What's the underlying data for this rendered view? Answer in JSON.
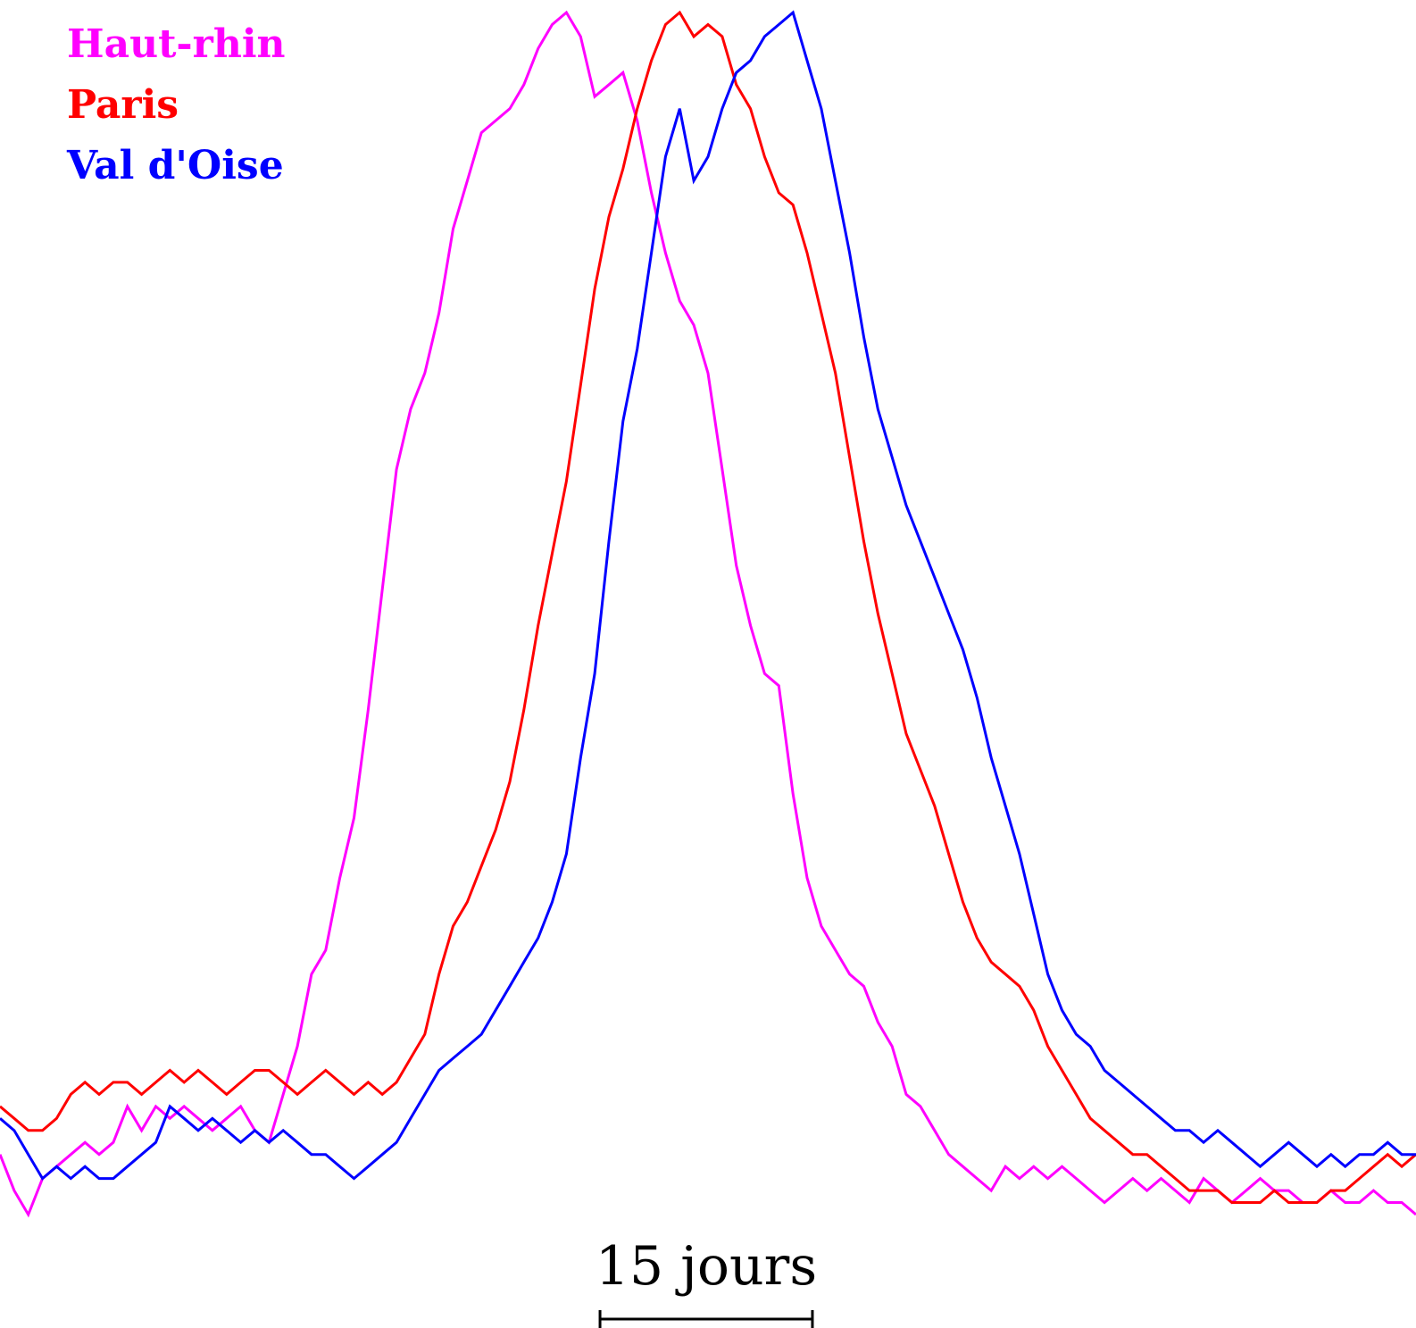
{
  "chart_data": {
    "type": "line",
    "title": "",
    "xlabel": "",
    "ylabel": "",
    "grid": false,
    "axes_visible": false,
    "legend_placement": "top-left",
    "x_unit": "days",
    "x": [
      0,
      1,
      2,
      3,
      4,
      5,
      6,
      7,
      8,
      9,
      10,
      11,
      12,
      13,
      14,
      15,
      16,
      17,
      18,
      19,
      20,
      21,
      22,
      23,
      24,
      25,
      26,
      27,
      28,
      29,
      30,
      31,
      32,
      33,
      34,
      35,
      36,
      37,
      38,
      39,
      40,
      41,
      42,
      43,
      44,
      45,
      46,
      47,
      48,
      49,
      50,
      51,
      52,
      53,
      54,
      55,
      56,
      57,
      58,
      59,
      60,
      61,
      62,
      63,
      64,
      65,
      66,
      67,
      68,
      69,
      70,
      71,
      72,
      73,
      74,
      75,
      76,
      77,
      78,
      79,
      80,
      81,
      82,
      83,
      84,
      85,
      86,
      87,
      88,
      89,
      90,
      91,
      92,
      93,
      94,
      95,
      96,
      97,
      98,
      99,
      100
    ],
    "ylim": [
      0,
      1
    ],
    "scale_bar": {
      "label": "15 jours",
      "days": 15
    },
    "series": [
      {
        "name": "Haut-rhin",
        "color": "#ff00ff",
        "values": [
          0.05,
          0.02,
          0.0,
          0.03,
          0.04,
          0.05,
          0.06,
          0.05,
          0.06,
          0.09,
          0.07,
          0.09,
          0.08,
          0.09,
          0.08,
          0.07,
          0.08,
          0.09,
          0.07,
          0.06,
          0.1,
          0.14,
          0.2,
          0.22,
          0.28,
          0.33,
          0.42,
          0.52,
          0.62,
          0.67,
          0.7,
          0.75,
          0.82,
          0.86,
          0.9,
          0.91,
          0.92,
          0.94,
          0.97,
          0.99,
          1.0,
          0.98,
          0.93,
          0.94,
          0.95,
          0.91,
          0.85,
          0.8,
          0.76,
          0.74,
          0.7,
          0.62,
          0.54,
          0.49,
          0.45,
          0.44,
          0.35,
          0.28,
          0.24,
          0.22,
          0.2,
          0.19,
          0.16,
          0.14,
          0.1,
          0.09,
          0.07,
          0.05,
          0.04,
          0.03,
          0.02,
          0.04,
          0.03,
          0.04,
          0.03,
          0.04,
          0.03,
          0.02,
          0.01,
          0.02,
          0.03,
          0.02,
          0.03,
          0.02,
          0.01,
          0.03,
          0.02,
          0.01,
          0.02,
          0.03,
          0.02,
          0.02,
          0.01,
          0.01,
          0.02,
          0.01,
          0.01,
          0.02,
          0.01,
          0.01,
          0.0
        ]
      },
      {
        "name": "Paris",
        "color": "#ff0000",
        "values": [
          0.09,
          0.08,
          0.07,
          0.07,
          0.08,
          0.1,
          0.11,
          0.1,
          0.11,
          0.11,
          0.1,
          0.11,
          0.12,
          0.11,
          0.12,
          0.11,
          0.1,
          0.11,
          0.12,
          0.12,
          0.11,
          0.1,
          0.11,
          0.12,
          0.11,
          0.1,
          0.11,
          0.1,
          0.11,
          0.13,
          0.15,
          0.2,
          0.24,
          0.26,
          0.29,
          0.32,
          0.36,
          0.42,
          0.49,
          0.55,
          0.61,
          0.69,
          0.77,
          0.83,
          0.87,
          0.92,
          0.96,
          0.99,
          1.0,
          0.98,
          0.99,
          0.98,
          0.94,
          0.92,
          0.88,
          0.85,
          0.84,
          0.8,
          0.75,
          0.7,
          0.63,
          0.56,
          0.5,
          0.45,
          0.4,
          0.37,
          0.34,
          0.3,
          0.26,
          0.23,
          0.21,
          0.2,
          0.19,
          0.17,
          0.14,
          0.12,
          0.1,
          0.08,
          0.07,
          0.06,
          0.05,
          0.05,
          0.04,
          0.03,
          0.02,
          0.02,
          0.02,
          0.01,
          0.01,
          0.01,
          0.02,
          0.01,
          0.01,
          0.01,
          0.02,
          0.02,
          0.03,
          0.04,
          0.05,
          0.04,
          0.05
        ]
      },
      {
        "name": "Val d'Oise",
        "color": "#0000ff",
        "values": [
          0.08,
          0.07,
          0.05,
          0.03,
          0.04,
          0.03,
          0.04,
          0.03,
          0.03,
          0.04,
          0.05,
          0.06,
          0.09,
          0.08,
          0.07,
          0.08,
          0.07,
          0.06,
          0.07,
          0.06,
          0.07,
          0.06,
          0.05,
          0.05,
          0.04,
          0.03,
          0.04,
          0.05,
          0.06,
          0.08,
          0.1,
          0.12,
          0.13,
          0.14,
          0.15,
          0.17,
          0.19,
          0.21,
          0.23,
          0.26,
          0.3,
          0.38,
          0.45,
          0.56,
          0.66,
          0.72,
          0.8,
          0.88,
          0.92,
          0.86,
          0.88,
          0.92,
          0.95,
          0.96,
          0.98,
          0.99,
          1.0,
          0.96,
          0.92,
          0.86,
          0.8,
          0.73,
          0.67,
          0.63,
          0.59,
          0.56,
          0.53,
          0.5,
          0.47,
          0.43,
          0.38,
          0.34,
          0.3,
          0.25,
          0.2,
          0.17,
          0.15,
          0.14,
          0.12,
          0.11,
          0.1,
          0.09,
          0.08,
          0.07,
          0.07,
          0.06,
          0.07,
          0.06,
          0.05,
          0.04,
          0.05,
          0.06,
          0.05,
          0.04,
          0.05,
          0.04,
          0.05,
          0.05,
          0.06,
          0.05,
          0.05
        ]
      }
    ]
  }
}
